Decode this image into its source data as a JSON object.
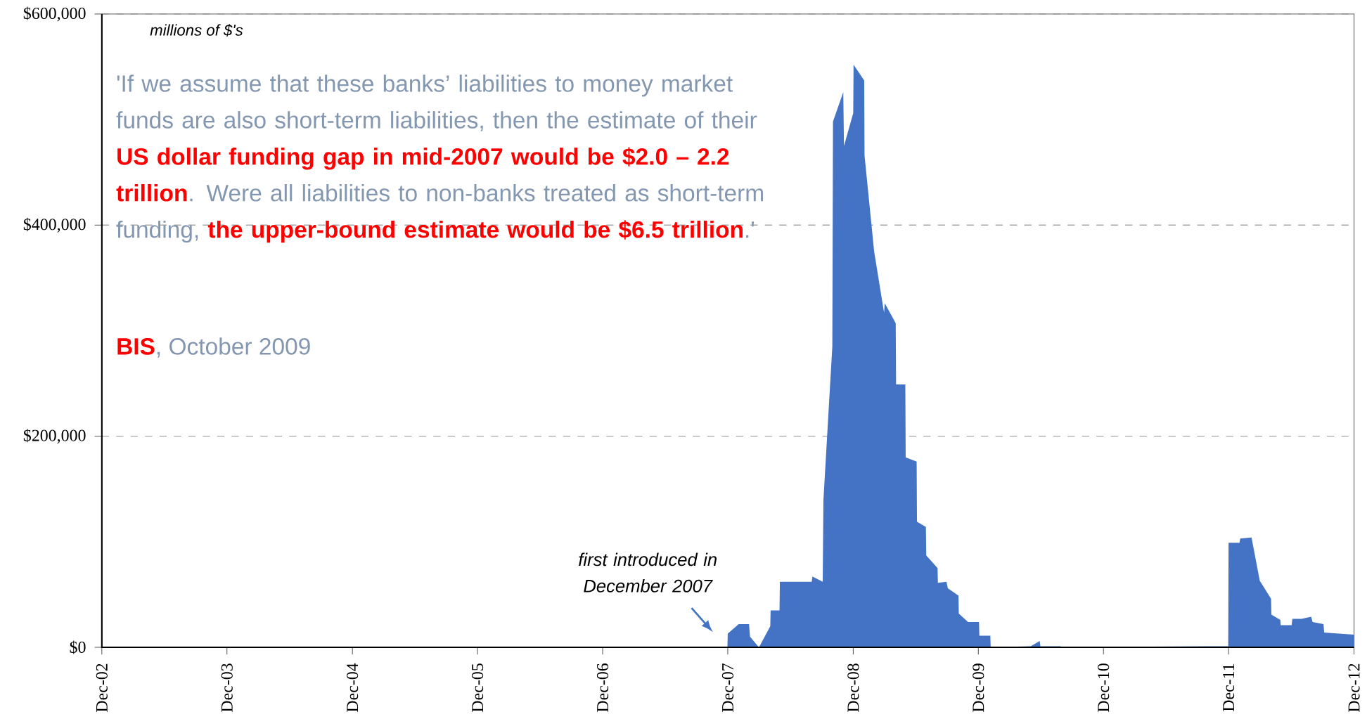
{
  "chart_data": {
    "type": "area",
    "color": "#4472c4",
    "grid": "y",
    "x": [
      "2002-12-01",
      "2007-11-30",
      "2007-12-01",
      "2008-01-02",
      "2008-02-01",
      "2008-02-04",
      "2008-03-01",
      "2008-04-03",
      "2008-04-04",
      "2008-04-30",
      "2008-05-01",
      "2008-08-02",
      "2008-08-04",
      "2008-09-03",
      "2008-09-05",
      "2008-10-01",
      "2008-10-03",
      "2008-11-02",
      "2008-11-04",
      "2008-12-01",
      "2008-12-02",
      "2009-01-02",
      "2009-01-03",
      "2009-01-31",
      "2009-03-01",
      "2009-03-03",
      "2009-04-04",
      "2009-04-05",
      "2009-05-02",
      "2009-05-03",
      "2009-06-04",
      "2009-06-05",
      "2009-07-01",
      "2009-07-02",
      "2009-08-04",
      "2009-08-05",
      "2009-08-30",
      "2009-09-03",
      "2009-10-04",
      "2009-10-05",
      "2009-11-01",
      "2009-12-03",
      "2009-12-04",
      "2010-01-05",
      "2010-01-06",
      "2010-05-03",
      "2010-05-29",
      "2010-05-31",
      "2010-07-29",
      "2010-07-30",
      "2011-10-02",
      "2011-11-30",
      "2011-12-01",
      "2012-01-02",
      "2012-01-04",
      "2012-02-06",
      "2012-03-01",
      "2012-04-03",
      "2012-04-04",
      "2012-04-30",
      "2012-05-01",
      "2012-06-02",
      "2012-06-04",
      "2012-07-01",
      "2012-07-29",
      "2012-08-02",
      "2012-09-03",
      "2012-09-05",
      "2012-12-01"
    ],
    "values": [
      0,
      0,
      13000,
      22000,
      22000,
      10000,
      0,
      20000,
      35000,
      35000,
      62000,
      62000,
      67000,
      62000,
      139000,
      285000,
      498000,
      526000,
      475000,
      506000,
      552000,
      537000,
      466000,
      375000,
      317000,
      326000,
      307000,
      249000,
      249000,
      180000,
      176000,
      119000,
      114000,
      87000,
      75000,
      61000,
      62000,
      56000,
      49000,
      32000,
      24000,
      24000,
      11000,
      11000,
      0,
      1000,
      6000,
      1000,
      1000,
      0,
      1000,
      1000,
      99000,
      99000,
      103000,
      104000,
      63000,
      46000,
      31000,
      26000,
      21000,
      21000,
      27000,
      27000,
      29000,
      24000,
      22000,
      14000,
      12000
    ],
    "xlim": [
      "2002-12-01",
      "2012-12-01"
    ],
    "xticks": [
      {
        "value": "2002-12-01",
        "label": "Dec-02"
      },
      {
        "value": "2003-12-01",
        "label": "Dec-03"
      },
      {
        "value": "2004-12-01",
        "label": "Dec-04"
      },
      {
        "value": "2005-12-01",
        "label": "Dec-05"
      },
      {
        "value": "2006-12-01",
        "label": "Dec-06"
      },
      {
        "value": "2007-12-01",
        "label": "Dec-07"
      },
      {
        "value": "2008-12-01",
        "label": "Dec-08"
      },
      {
        "value": "2009-12-01",
        "label": "Dec-09"
      },
      {
        "value": "2010-12-01",
        "label": "Dec-10"
      },
      {
        "value": "2011-12-01",
        "label": "Dec-11"
      },
      {
        "value": "2012-12-01",
        "label": "Dec-12"
      }
    ],
    "ylim": [
      0,
      600000
    ],
    "yticks": [
      {
        "value": 0,
        "label": "$0"
      },
      {
        "value": 200000,
        "label": "$200,000"
      },
      {
        "value": 400000,
        "label": "$400,000"
      },
      {
        "value": 600000,
        "label": "$600,000"
      }
    ],
    "annotations": [
      "millions of $'s",
      "'If we assume that these banks’ liabilities to money market funds are also short-term liabilities, then the estimate of their **US dollar funding gap in mid-2007 would be $2.0 – 2.2 trillion**. Were all liabilities to non-banks treated as short-term funding, **the upper-bound estimate would be $6.5 trillion**.'",
      "**BIS**, October 2009",
      "first introduced in December 2007"
    ]
  }
}
